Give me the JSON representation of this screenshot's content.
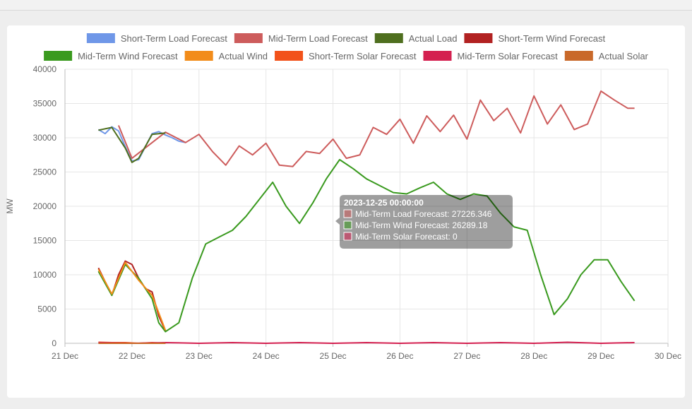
{
  "chart_data": {
    "type": "line",
    "ylabel": "MW",
    "ylim": [
      0,
      40000
    ],
    "y_ticks": [
      "0",
      "5000",
      "10000",
      "15000",
      "20000",
      "25000",
      "30000",
      "35000",
      "40000"
    ],
    "x_ticks": [
      "21 Dec",
      "22 Dec",
      "23 Dec",
      "24 Dec",
      "25 Dec",
      "26 Dec",
      "27 Dec",
      "28 Dec",
      "29 Dec",
      "30 Dec"
    ],
    "xlim": [
      0,
      9
    ],
    "grid": true,
    "legend_position": "top",
    "series": [
      {
        "name": "Short-Term Load Forecast",
        "color": "#6f97e8",
        "x": [
          0.5,
          0.6,
          0.7,
          0.8,
          0.9,
          1.0,
          1.1,
          1.2,
          1.3,
          1.4,
          1.5,
          1.6,
          1.7,
          1.8
        ],
        "y": [
          31200,
          30600,
          31600,
          31000,
          28700,
          26600,
          26800,
          28700,
          30600,
          30900,
          30400,
          30000,
          29500,
          29300
        ]
      },
      {
        "name": "Mid-Term Load Forecast",
        "color": "#cd5c5c",
        "x": [
          0.8,
          1.0,
          1.5,
          1.8,
          2.0,
          2.2,
          2.4,
          2.6,
          2.8,
          3.0,
          3.2,
          3.4,
          3.6,
          3.8,
          4.0,
          4.2,
          4.4,
          4.6,
          4.8,
          5.0,
          5.2,
          5.4,
          5.6,
          5.8,
          6.0,
          6.2,
          6.4,
          6.6,
          6.8,
          7.0,
          7.2,
          7.4,
          7.6,
          7.8,
          8.0,
          8.2,
          8.4,
          8.5
        ],
        "y": [
          31800,
          27000,
          30800,
          29300,
          30500,
          28000,
          26000,
          28800,
          27500,
          29200,
          26000,
          25800,
          28000,
          27700,
          29800,
          27000,
          27500,
          31500,
          30500,
          32700,
          29200,
          33200,
          30900,
          33300,
          29800,
          35500,
          32500,
          34300,
          30700,
          36100,
          32000,
          34800,
          31200,
          32000,
          36800,
          35500,
          34300,
          34300
        ]
      },
      {
        "name": "Actual Load",
        "color": "#4f6f1f",
        "x": [
          0.5,
          0.7,
          0.9,
          1.0,
          1.1,
          1.3,
          1.5
        ],
        "y": [
          31100,
          31500,
          28500,
          26400,
          27000,
          30500,
          30700
        ]
      },
      {
        "name": "Short-Term Wind Forecast",
        "color": "#b22222",
        "x": [
          0.5,
          0.6,
          0.7,
          0.8,
          0.9,
          1.0,
          1.1,
          1.2,
          1.3,
          1.4,
          1.5
        ],
        "y": [
          11000,
          9000,
          7000,
          10000,
          12000,
          11500,
          9500,
          8000,
          7500,
          4000,
          1800
        ]
      },
      {
        "name": "Mid-Term Wind Forecast",
        "color": "#3a9a1f",
        "x": [
          0.5,
          0.7,
          0.9,
          1.1,
          1.3,
          1.4,
          1.5,
          1.7,
          1.9,
          2.1,
          2.3,
          2.5,
          2.7,
          2.9,
          3.1,
          3.3,
          3.5,
          3.7,
          3.9,
          4.1,
          4.3,
          4.5,
          4.7,
          4.9,
          5.1,
          5.3,
          5.5,
          5.7,
          5.9,
          6.1,
          6.3,
          6.5,
          6.7,
          6.9,
          7.1,
          7.3,
          7.5,
          7.7,
          7.9,
          8.1,
          8.3,
          8.5
        ],
        "y": [
          10500,
          7000,
          11500,
          9500,
          6500,
          3000,
          1700,
          3000,
          9500,
          14500,
          15500,
          16500,
          18500,
          21000,
          23500,
          20000,
          17500,
          20500,
          24000,
          26800,
          25500,
          24000,
          23000,
          22000,
          21800,
          22700,
          23500,
          21800,
          21000,
          21800,
          21500,
          19000,
          17000,
          16500,
          10000,
          4200,
          6500,
          10000,
          12200,
          12200,
          9000,
          6200
        ]
      },
      {
        "name": "Actual Wind",
        "color": "#f28c1a",
        "x": [
          0.5,
          0.7,
          0.9,
          1.1,
          1.3,
          1.5
        ],
        "y": [
          10800,
          7200,
          11800,
          9200,
          7000,
          1900
        ]
      },
      {
        "name": "Short-Term Solar Forecast",
        "color": "#f2521a",
        "x": [
          0.5,
          0.7,
          0.9,
          1.1,
          1.3,
          1.5
        ],
        "y": [
          150,
          100,
          100,
          0,
          100,
          0
        ]
      },
      {
        "name": "Mid-Term Solar Forecast",
        "color": "#d42050",
        "x": [
          0.5,
          1.0,
          1.5,
          2.0,
          2.5,
          3.0,
          3.5,
          4.0,
          4.5,
          5.0,
          5.5,
          6.0,
          6.5,
          7.0,
          7.5,
          8.0,
          8.5
        ],
        "y": [
          100,
          0,
          100,
          0,
          100,
          0,
          100,
          0,
          100,
          0,
          100,
          0,
          100,
          0,
          150,
          0,
          100
        ]
      },
      {
        "name": "Actual Solar",
        "color": "#c9692a",
        "x": [
          0.5,
          1.0,
          1.5
        ],
        "y": [
          0,
          0,
          0
        ]
      }
    ]
  },
  "tooltip": {
    "title": "2023-12-25 00:00:00",
    "lines": [
      {
        "text": "Mid-Term Load Forecast: 27226.346",
        "color": "#cd5c5c"
      },
      {
        "text": "Mid-Term Wind Forecast: 26289.18",
        "color": "#3a9a1f"
      },
      {
        "text": "Mid-Term Solar Forecast: 0",
        "color": "#d42050"
      }
    ]
  }
}
